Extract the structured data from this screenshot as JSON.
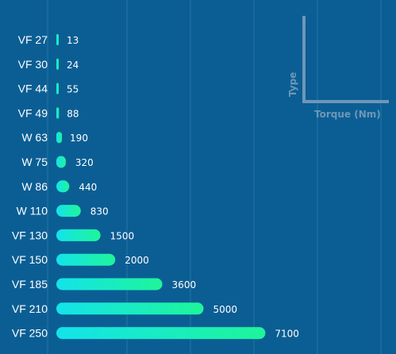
{
  "chart_data": {
    "type": "bar",
    "orientation": "horizontal",
    "categories": [
      "VF 27",
      "VF 30",
      "VF 44",
      "VF 49",
      "W 63",
      "W 75",
      "W 86",
      "W 110",
      "VF 130",
      "VF 150",
      "VF 185",
      "VF 210",
      "VF 250"
    ],
    "values": [
      13,
      24,
      55,
      88,
      190,
      320,
      440,
      830,
      1500,
      2000,
      3600,
      5000,
      7100
    ],
    "value_labels": [
      "13",
      "24",
      "55",
      "88",
      "190",
      "320",
      "440",
      "830",
      "1500",
      "2000",
      "3600",
      "5000",
      "7100"
    ],
    "xlabel": "Torque (Nm)",
    "ylabel": "Type",
    "grid": true,
    "legend_position": "top-right",
    "colors": {
      "bar_start": "#13e3ea",
      "bar_end": "#1ef59a",
      "background": "#0b5e94",
      "text": "#ffffff",
      "axis_key": "#6e97b7"
    }
  }
}
